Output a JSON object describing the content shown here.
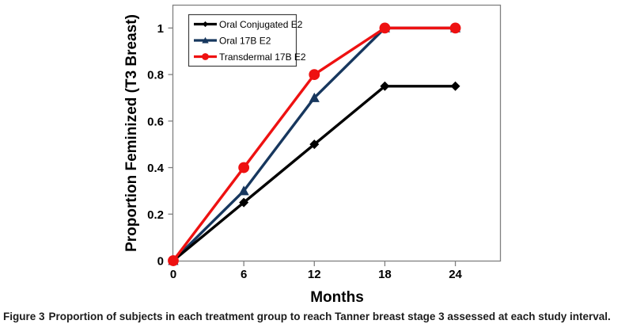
{
  "figure": {
    "caption_label": "Figure 3",
    "caption_text": "Proportion of subjects in each treatment group to reach Tanner breast stage 3 assessed at each study interval."
  },
  "chart_data": {
    "type": "line",
    "title": "",
    "xlabel": "Months",
    "ylabel": "Proportion Feminized (T3 Breast)",
    "x": [
      0,
      6,
      12,
      18,
      24
    ],
    "xtick_labels": [
      "0",
      "6",
      "12",
      "18",
      "24"
    ],
    "ytick_values": [
      0,
      0.2,
      0.4,
      0.6,
      0.8,
      1
    ],
    "ytick_labels": [
      "0",
      "0.2",
      "0.4",
      "0.6",
      "0.8",
      "1"
    ],
    "xlim": [
      0,
      27.8
    ],
    "ylim": [
      0,
      1.1
    ],
    "grid": false,
    "legend_position": "top-left",
    "axis_color": "#808080",
    "series": [
      {
        "name": "Oral Conjugated E2",
        "marker": "diamond",
        "color": "#000000",
        "values": [
          0,
          0.25,
          0.5,
          0.75,
          0.75
        ]
      },
      {
        "name": "Oral 17B E2",
        "marker": "triangle",
        "color": "#17375e",
        "values": [
          0,
          0.3,
          0.7,
          1,
          1
        ]
      },
      {
        "name": "Transdermal 17B E2",
        "marker": "circle",
        "color": "#ee1111",
        "values": [
          0,
          0.4,
          0.8,
          1,
          1
        ]
      }
    ]
  }
}
